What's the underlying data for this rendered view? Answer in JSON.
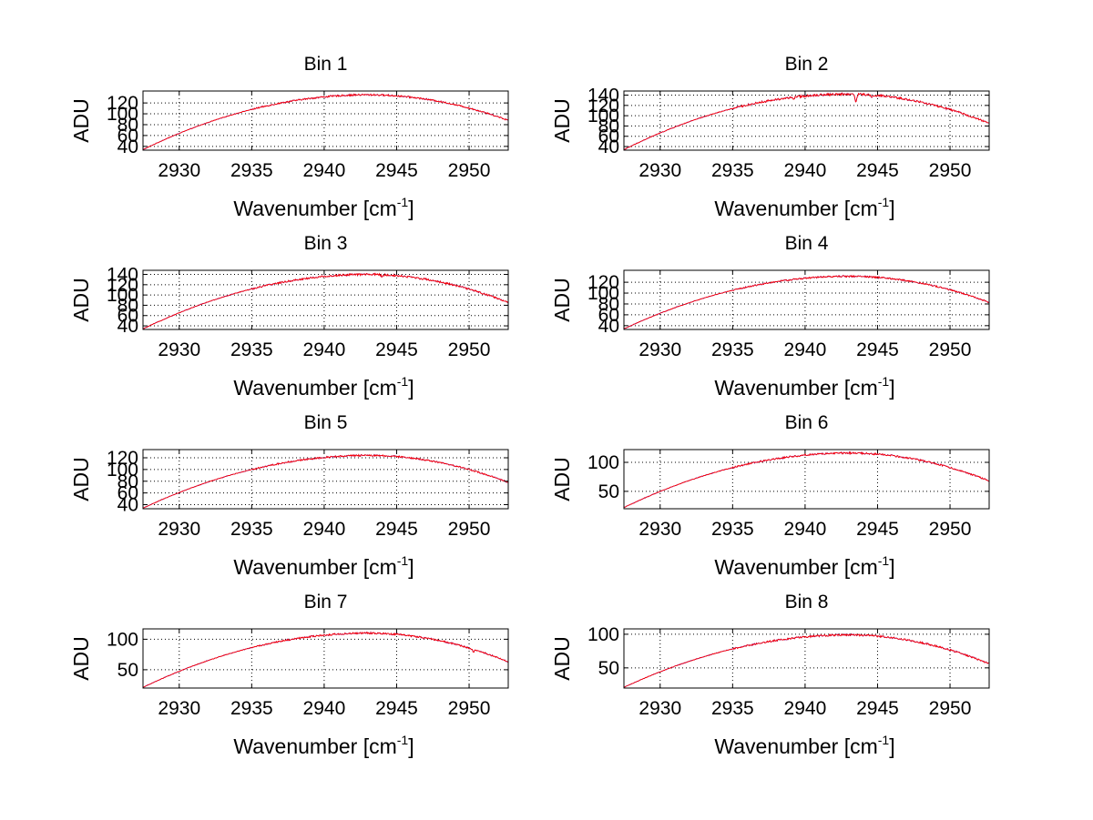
{
  "figure": {
    "x_label": "Wavenumber [cm",
    "x_label_sup": "-1",
    "x_label_end": "]",
    "y_label": "ADU"
  },
  "colors": {
    "series_red": "#ff0000",
    "series_blue": "#0000ff",
    "axis": "#000000",
    "grid": "#000000"
  },
  "chart_data": [
    {
      "type": "line",
      "title": "Bin 1",
      "xlim": [
        2927.5,
        2952.7
      ],
      "ylim": [
        33,
        142
      ],
      "xticks": [
        2930,
        2935,
        2940,
        2945,
        2950
      ],
      "xtick_labels": [
        "2930",
        "2935",
        "2940",
        "2945",
        "2950"
      ],
      "yticks": [
        40,
        60,
        80,
        100,
        120
      ],
      "ytick_labels": [
        "40",
        "60",
        "80",
        "100",
        "120"
      ],
      "grid": true,
      "peak": 135,
      "peak_x": 2943,
      "start": 34,
      "end": 88,
      "noise": 1.5,
      "dips": []
    },
    {
      "type": "line",
      "title": "Bin 2",
      "xlim": [
        2927.5,
        2952.7
      ],
      "ylim": [
        33,
        148
      ],
      "xticks": [
        2930,
        2935,
        2940,
        2945,
        2950
      ],
      "xtick_labels": [
        "2930",
        "2935",
        "2940",
        "2945",
        "2950"
      ],
      "yticks": [
        40,
        60,
        80,
        100,
        120,
        140
      ],
      "ytick_labels": [
        "40",
        "60",
        "80",
        "100",
        "120",
        "140"
      ],
      "grid": true,
      "peak": 142,
      "peak_x": 2942.8,
      "start": 34,
      "end": 85,
      "noise": 2.2,
      "dips": [
        [
          2943.5,
          16
        ],
        [
          2939.2,
          5
        ],
        [
          2944.6,
          6
        ]
      ]
    },
    {
      "type": "line",
      "title": "Bin 3",
      "xlim": [
        2927.5,
        2952.7
      ],
      "ylim": [
        33,
        148
      ],
      "xticks": [
        2930,
        2935,
        2940,
        2945,
        2950
      ],
      "xtick_labels": [
        "2930",
        "2935",
        "2940",
        "2945",
        "2950"
      ],
      "yticks": [
        40,
        60,
        80,
        100,
        120,
        140
      ],
      "ytick_labels": [
        "40",
        "60",
        "80",
        "100",
        "120",
        "140"
      ],
      "grid": true,
      "peak": 140,
      "peak_x": 2943,
      "start": 34,
      "end": 85,
      "noise": 2.0,
      "dips": [
        [
          2944,
          5
        ]
      ]
    },
    {
      "type": "line",
      "title": "Bin 4",
      "xlim": [
        2927.5,
        2952.7
      ],
      "ylim": [
        33,
        142
      ],
      "xticks": [
        2930,
        2935,
        2940,
        2945,
        2950
      ],
      "xtick_labels": [
        "2930",
        "2935",
        "2940",
        "2945",
        "2950"
      ],
      "yticks": [
        40,
        60,
        80,
        100,
        120
      ],
      "ytick_labels": [
        "40",
        "60",
        "80",
        "100",
        "120"
      ],
      "grid": true,
      "peak": 131,
      "peak_x": 2943,
      "start": 34,
      "end": 83,
      "noise": 1.5,
      "dips": []
    },
    {
      "type": "line",
      "title": "Bin 5",
      "xlim": [
        2927.5,
        2952.7
      ],
      "ylim": [
        33,
        134
      ],
      "xticks": [
        2930,
        2935,
        2940,
        2945,
        2950
      ],
      "xtick_labels": [
        "2930",
        "2935",
        "2940",
        "2945",
        "2950"
      ],
      "yticks": [
        40,
        60,
        80,
        100,
        120
      ],
      "ytick_labels": [
        "40",
        "60",
        "80",
        "100",
        "120"
      ],
      "grid": true,
      "peak": 124,
      "peak_x": 2943,
      "start": 34,
      "end": 78,
      "noise": 1.4,
      "dips": []
    },
    {
      "type": "line",
      "title": "Bin 6",
      "xlim": [
        2927.5,
        2952.7
      ],
      "ylim": [
        20,
        122
      ],
      "xticks": [
        2930,
        2935,
        2940,
        2945,
        2950
      ],
      "xtick_labels": [
        "2930",
        "2935",
        "2940",
        "2945",
        "2950"
      ],
      "yticks": [
        50,
        100
      ],
      "ytick_labels": [
        "50",
        "100"
      ],
      "grid": true,
      "peak": 116,
      "peak_x": 2943,
      "start": 22,
      "end": 68,
      "noise": 1.6,
      "dips": []
    },
    {
      "type": "line",
      "title": "Bin 7",
      "xlim": [
        2927.5,
        2952.7
      ],
      "ylim": [
        20,
        117
      ],
      "xticks": [
        2930,
        2935,
        2940,
        2945,
        2950
      ],
      "xtick_labels": [
        "2930",
        "2935",
        "2940",
        "2945",
        "2950"
      ],
      "yticks": [
        50,
        100
      ],
      "ytick_labels": [
        "50",
        "100"
      ],
      "grid": true,
      "peak": 110,
      "peak_x": 2943,
      "start": 21,
      "end": 63,
      "noise": 1.4,
      "dips": [
        [
          2950.3,
          4
        ]
      ]
    },
    {
      "type": "line",
      "title": "Bin 8",
      "xlim": [
        2927.5,
        2952.7
      ],
      "ylim": [
        20,
        108
      ],
      "xticks": [
        2930,
        2935,
        2940,
        2945,
        2950
      ],
      "xtick_labels": [
        "2930",
        "2935",
        "2940",
        "2945",
        "2950"
      ],
      "yticks": [
        50,
        100
      ],
      "ytick_labels": [
        "50",
        "100"
      ],
      "grid": true,
      "peak": 99,
      "peak_x": 2943,
      "start": 21,
      "end": 56,
      "noise": 1.4,
      "dips": []
    }
  ]
}
